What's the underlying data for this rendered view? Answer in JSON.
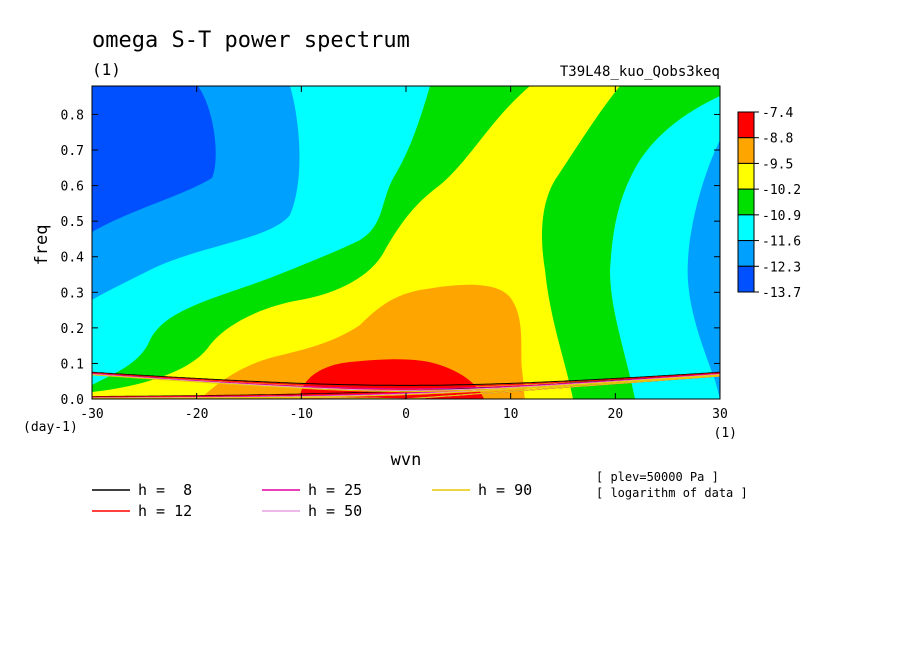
{
  "chart_data": {
    "type": "heatmap",
    "title": "omega S-T power spectrum",
    "unit_label": "(1)",
    "run_label": "T39L48_kuo_Qobs3keq",
    "xlabel": "wvn",
    "ylabel": "freq",
    "x_unit": "(1)",
    "y_unit": "(day-1)",
    "xlim": [
      -30,
      30
    ],
    "ylim": [
      0,
      0.88
    ],
    "x_ticks": [
      "-30",
      "-20",
      "-10",
      "0",
      "10",
      "20",
      "30"
    ],
    "x_tick_values": [
      -30,
      -20,
      -10,
      0,
      10,
      20,
      30
    ],
    "y_ticks": [
      "0.0",
      "0.1",
      "0.2",
      "0.3",
      "0.4",
      "0.5",
      "0.6",
      "0.7",
      "0.8"
    ],
    "y_tick_values": [
      0,
      0.1,
      0.2,
      0.3,
      0.4,
      0.5,
      0.6,
      0.7,
      0.8
    ],
    "colorbar": {
      "labels": [
        "-7.4",
        "-8.8",
        "-9.5",
        "-10.2",
        "-10.9",
        "-11.6",
        "-12.3",
        "-13.7"
      ],
      "colors": [
        "#ff0000",
        "#ffa500",
        "#ffff00",
        "#00e000",
        "#00ffff",
        "#00a0ff",
        "#0050ff"
      ]
    },
    "annotation_lines": [
      "[ plev=50000 Pa ]",
      "[ logarithm of data ]"
    ],
    "dispersion_curves": [
      {
        "label": "h =  8",
        "h": 8,
        "color": "#000000"
      },
      {
        "label": "h = 12",
        "h": 12,
        "color": "#ff0000"
      },
      {
        "label": "h = 25",
        "h": 25,
        "color": "#e000a0"
      },
      {
        "label": "h = 50",
        "h": 50,
        "color": "#e8a0e0"
      },
      {
        "label": "h = 90",
        "h": 90,
        "color": "#e8c800"
      }
    ]
  }
}
